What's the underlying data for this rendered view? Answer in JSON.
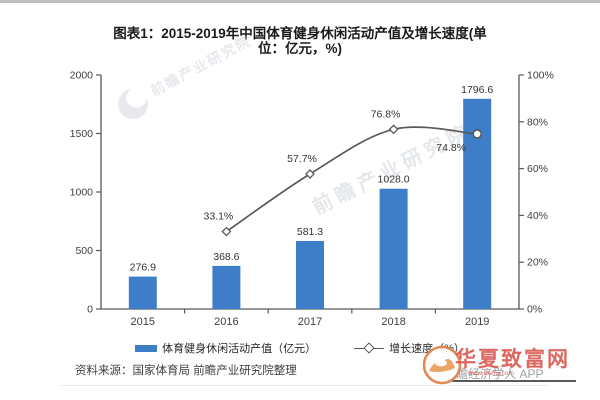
{
  "title": {
    "line1": "图表1：2015-2019年中国体育健身休闲活动产值及增长速度(单",
    "line2": "位：亿元，%)"
  },
  "chart_data": {
    "type": "combo",
    "title": "图表1：2015-2019年中国体育健身休闲活动产值及增长速度(单位：亿元，%)",
    "categories": [
      "2015",
      "2016",
      "2017",
      "2018",
      "2019"
    ],
    "series": [
      {
        "name": "体育健身休闲活动产值（亿元）",
        "type": "bar",
        "axis": "left",
        "color": "#3E7DC8",
        "values": [
          276.9,
          368.6,
          581.3,
          1028.0,
          1796.6
        ],
        "value_labels": [
          "276.9",
          "368.6",
          "581.3",
          "1028.0",
          "1796.6"
        ]
      },
      {
        "name": "增长速度（%）",
        "type": "line",
        "axis": "right",
        "color": "#595959",
        "values": [
          null,
          33.1,
          57.7,
          76.8,
          74.8
        ],
        "value_labels": [
          null,
          "33.1%",
          "57.7%",
          "76.8%",
          "74.8%"
        ],
        "label_positions": [
          null,
          "above",
          "above",
          "above",
          "below"
        ]
      }
    ],
    "left_axis": {
      "min": 0,
      "max": 2000,
      "ticks": [
        "0",
        "500",
        "1000",
        "1500",
        "2000"
      ]
    },
    "right_axis": {
      "min": 0,
      "max": 100,
      "ticks": [
        "0%",
        "20%",
        "40%",
        "60%",
        "80%",
        "100%"
      ]
    },
    "grid": false,
    "legend_position": "bottom"
  },
  "legend": {
    "bar_label": "体育健身休闲活动产值（亿元）",
    "line_label": "增长速度（%）"
  },
  "source": {
    "text": "资料来源：国家体育局 前瞻产业研究院整理"
  },
  "watermarks": {
    "qianzhan_text": "前瞻产业研究院",
    "footer_gray": "@前瞻经济学人 APP",
    "red_title": "华夏致富网",
    "red_subtext": "www.hxzfw.com"
  },
  "colors": {
    "bar": "#3E7DC8",
    "line": "#595959",
    "axis": "#595959",
    "tick_text": "#404040",
    "value_text": "#333333",
    "red_watermark": "#d9544c",
    "logo_orange": "#e0824a"
  }
}
